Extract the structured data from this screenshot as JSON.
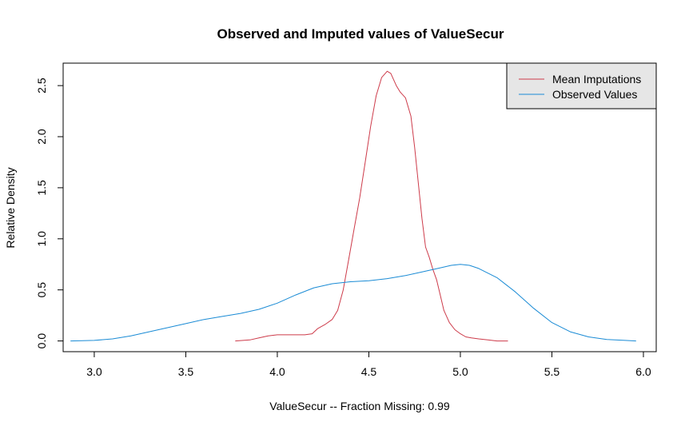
{
  "chart_data": {
    "type": "line",
    "title": "Observed and Imputed values of ValueSecur",
    "xlabel": "ValueSecur   --  Fraction Missing: 0.99",
    "ylabel": "Relative Density",
    "xlim": [
      2.83,
      6.07
    ],
    "ylim": [
      -0.105,
      2.72
    ],
    "xticks": [
      "3.0",
      "3.5",
      "4.0",
      "4.5",
      "5.0",
      "5.5",
      "6.0"
    ],
    "yticks": [
      "0.0",
      "0.5",
      "1.0",
      "1.5",
      "2.0",
      "2.5"
    ],
    "grid": false,
    "legend_position": "top-right",
    "series": [
      {
        "name": "Mean Imputations",
        "color": "#cd3b4a",
        "x": [
          3.77,
          3.85,
          3.9,
          3.95,
          4.0,
          4.05,
          4.1,
          4.15,
          4.19,
          4.22,
          4.26,
          4.3,
          4.33,
          4.36,
          4.39,
          4.42,
          4.45,
          4.48,
          4.51,
          4.54,
          4.57,
          4.6,
          4.62,
          4.63,
          4.65,
          4.67,
          4.7,
          4.73,
          4.75,
          4.77,
          4.79,
          4.81,
          4.83,
          4.85,
          4.87,
          4.89,
          4.91,
          4.94,
          4.97,
          5.0,
          5.03,
          5.06,
          5.1,
          5.15,
          5.2,
          5.26
        ],
        "y": [
          0.0,
          0.01,
          0.03,
          0.05,
          0.06,
          0.06,
          0.06,
          0.06,
          0.07,
          0.12,
          0.16,
          0.21,
          0.3,
          0.5,
          0.8,
          1.1,
          1.4,
          1.75,
          2.1,
          2.4,
          2.58,
          2.64,
          2.62,
          2.58,
          2.5,
          2.44,
          2.38,
          2.2,
          1.9,
          1.55,
          1.2,
          0.92,
          0.82,
          0.7,
          0.6,
          0.45,
          0.3,
          0.18,
          0.11,
          0.07,
          0.04,
          0.03,
          0.02,
          0.01,
          0.0,
          0.0
        ]
      },
      {
        "name": "Observed Values",
        "color": "#1a8bd5",
        "x": [
          2.87,
          3.0,
          3.1,
          3.2,
          3.3,
          3.4,
          3.5,
          3.6,
          3.7,
          3.8,
          3.9,
          4.0,
          4.1,
          4.2,
          4.3,
          4.4,
          4.5,
          4.6,
          4.7,
          4.8,
          4.9,
          4.95,
          5.0,
          5.05,
          5.1,
          5.2,
          5.3,
          5.4,
          5.5,
          5.6,
          5.7,
          5.8,
          5.9,
          5.96
        ],
        "y": [
          0.0,
          0.005,
          0.02,
          0.05,
          0.09,
          0.13,
          0.17,
          0.21,
          0.24,
          0.27,
          0.31,
          0.37,
          0.45,
          0.52,
          0.56,
          0.58,
          0.59,
          0.61,
          0.64,
          0.68,
          0.72,
          0.74,
          0.75,
          0.74,
          0.71,
          0.62,
          0.48,
          0.32,
          0.18,
          0.09,
          0.04,
          0.015,
          0.005,
          0.0
        ]
      }
    ]
  }
}
